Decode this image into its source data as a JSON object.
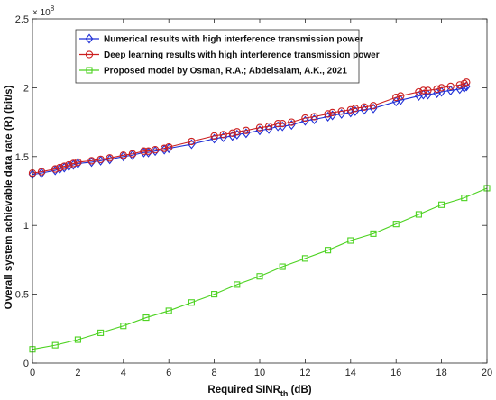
{
  "chart_data": {
    "type": "line",
    "xlabel": "Required SINR",
    "xlabel_sub": "th",
    "xlabel_unit": " (dB)",
    "ylabel": "Overall system achievable data rate (R) (bit/s)",
    "y_exponent_base": "× 10",
    "y_exponent_power": "8",
    "xlim": [
      0,
      20
    ],
    "ylim": [
      0,
      2.5
    ],
    "xticks": [
      "0",
      "2",
      "4",
      "6",
      "8",
      "10",
      "12",
      "14",
      "16",
      "18",
      "20"
    ],
    "yticks": [
      "0",
      "0.5",
      "1",
      "1.5",
      "2",
      "2.5"
    ],
    "grid": false,
    "legend_position": "top-left",
    "series": [
      {
        "name": "Numerical results with high interference transmission power",
        "color": "#1f2fd6",
        "marker": "diamond",
        "x": [
          0,
          0.4,
          1,
          1.2,
          1.4,
          1.6,
          1.8,
          2,
          2.6,
          3,
          3.4,
          4,
          4.4,
          4.9,
          5.1,
          5.4,
          5.8,
          6,
          7,
          8,
          8.4,
          8.8,
          9,
          9.4,
          10,
          10.4,
          10.8,
          11,
          11.4,
          12,
          12.4,
          13,
          13.2,
          13.6,
          14,
          14.2,
          14.6,
          15,
          16,
          16.2,
          17,
          17.2,
          17.4,
          17.8,
          18,
          18.4,
          18.8,
          19,
          19.1
        ],
        "y": [
          1.37,
          1.38,
          1.4,
          1.41,
          1.42,
          1.43,
          1.44,
          1.45,
          1.46,
          1.47,
          1.48,
          1.5,
          1.51,
          1.53,
          1.53,
          1.54,
          1.55,
          1.56,
          1.59,
          1.63,
          1.64,
          1.65,
          1.66,
          1.67,
          1.69,
          1.7,
          1.72,
          1.72,
          1.73,
          1.76,
          1.77,
          1.79,
          1.8,
          1.81,
          1.82,
          1.83,
          1.84,
          1.85,
          1.9,
          1.91,
          1.94,
          1.95,
          1.95,
          1.96,
          1.97,
          1.98,
          1.99,
          2.0,
          2.01
        ]
      },
      {
        "name": "Deep learning results with high interference transmission power",
        "color": "#cc1f1f",
        "marker": "circle",
        "x": [
          0,
          0.4,
          1,
          1.2,
          1.4,
          1.6,
          1.8,
          2,
          2.6,
          3,
          3.4,
          4,
          4.4,
          4.9,
          5.1,
          5.4,
          5.8,
          6,
          7,
          8,
          8.4,
          8.8,
          9,
          9.4,
          10,
          10.4,
          10.8,
          11,
          11.4,
          12,
          12.4,
          13,
          13.2,
          13.6,
          14,
          14.2,
          14.6,
          15,
          16,
          16.2,
          17,
          17.2,
          17.4,
          17.8,
          18,
          18.4,
          18.8,
          19,
          19.1
        ],
        "y": [
          1.38,
          1.39,
          1.41,
          1.42,
          1.43,
          1.44,
          1.45,
          1.46,
          1.47,
          1.48,
          1.49,
          1.51,
          1.52,
          1.54,
          1.54,
          1.55,
          1.56,
          1.57,
          1.61,
          1.65,
          1.66,
          1.67,
          1.68,
          1.69,
          1.71,
          1.72,
          1.74,
          1.74,
          1.75,
          1.78,
          1.79,
          1.81,
          1.82,
          1.83,
          1.84,
          1.85,
          1.86,
          1.87,
          1.93,
          1.94,
          1.97,
          1.98,
          1.98,
          1.99,
          2.0,
          2.01,
          2.02,
          2.03,
          2.04
        ]
      },
      {
        "name": "Proposed model by Osman, R.A.; Abdelsalam, A.K., 2021",
        "color": "#4bd21f",
        "marker": "square",
        "x": [
          0,
          1,
          2,
          3,
          4,
          5,
          6,
          7,
          8,
          9,
          10,
          11,
          12,
          13,
          14,
          15,
          16,
          17,
          18,
          19,
          20
        ],
        "y": [
          0.1,
          0.13,
          0.17,
          0.22,
          0.27,
          0.33,
          0.38,
          0.44,
          0.5,
          0.57,
          0.63,
          0.7,
          0.76,
          0.82,
          0.89,
          0.94,
          1.01,
          1.08,
          1.15,
          1.2,
          1.27
        ]
      }
    ]
  }
}
